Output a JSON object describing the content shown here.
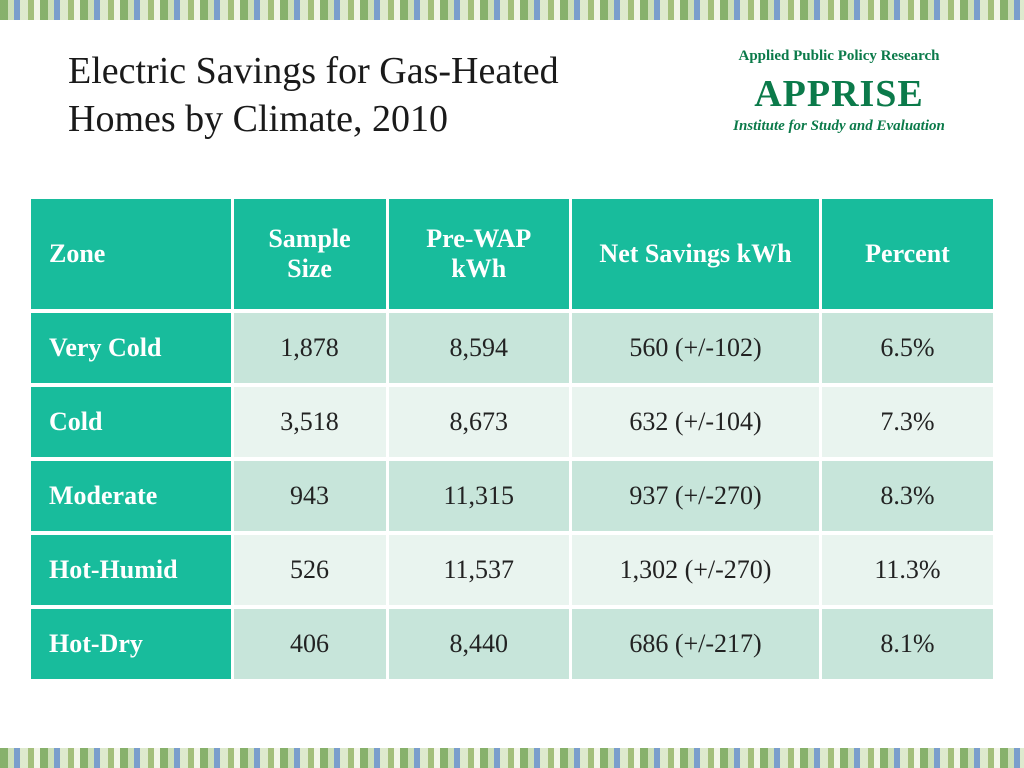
{
  "title": "Electric Savings for Gas-Heated Homes by Climate, 2010",
  "logo": {
    "arc_top": "Applied Public Policy Research",
    "main": "APPRISE",
    "arc_bottom": "Institute for Study and Evaluation"
  },
  "table": {
    "type": "table",
    "header_bg": "#18bc9c",
    "header_fg": "#ffffff",
    "row_odd_bg": "#c7e5da",
    "row_even_bg": "#e9f4ef",
    "text_color": "#222222",
    "header_fontsize": 26,
    "cell_fontsize": 26,
    "columns": [
      "Zone",
      "Sample Size",
      "Pre-WAP kWh",
      "Net Savings kWh",
      "Percent"
    ],
    "col_widths_pct": [
      21,
      16,
      19,
      26,
      18
    ],
    "rows": [
      {
        "zone": "Very Cold",
        "sample": "1,878",
        "prewap": "8,594",
        "savings": "560 (+/-102)",
        "percent": "6.5%"
      },
      {
        "zone": "Cold",
        "sample": "3,518",
        "prewap": "8,673",
        "savings": "632 (+/-104)",
        "percent": "7.3%"
      },
      {
        "zone": "Moderate",
        "sample": "943",
        "prewap": "11,315",
        "savings": "937 (+/-270)",
        "percent": "8.3%"
      },
      {
        "zone": "Hot-Humid",
        "sample": "526",
        "prewap": "11,537",
        "savings": "1,302 (+/-270)",
        "percent": "11.3%"
      },
      {
        "zone": "Hot-Dry",
        "sample": "406",
        "prewap": "8,440",
        "savings": "686 (+/-217)",
        "percent": "8.1%"
      }
    ]
  }
}
